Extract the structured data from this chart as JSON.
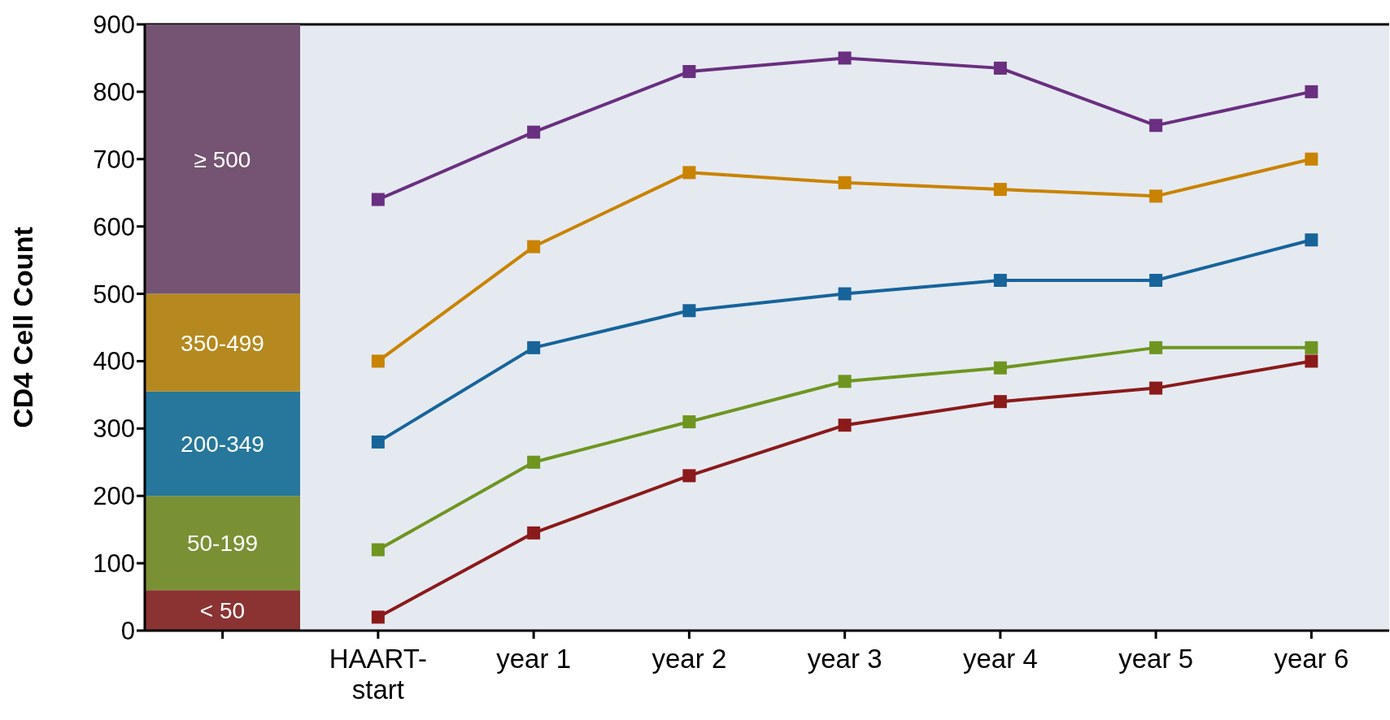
{
  "chart_data": {
    "type": "line",
    "ylabel": "CD4 Cell Count",
    "categories": [
      null,
      "HAART-start",
      "year 1",
      "year 2",
      "year 3",
      "year 4",
      "year 5",
      "year 6"
    ],
    "ylim": [
      0,
      900
    ],
    "yticks": [
      0,
      100,
      200,
      300,
      400,
      500,
      600,
      700,
      800,
      900
    ],
    "stacked": true,
    "marker": "square",
    "line_style": "solid",
    "legend": false,
    "series": [
      {
        "type": "bar",
        "name": "< 50",
        "color": "#8b3333",
        "values": [
          60,
          null,
          null,
          null,
          null,
          null,
          null,
          null
        ]
      },
      {
        "type": "bar",
        "name": "50-199",
        "color": "#7a9035",
        "values": [
          140,
          null,
          null,
          null,
          null,
          null,
          null,
          null
        ]
      },
      {
        "type": "bar",
        "name": "200-349",
        "color": "#26779b",
        "values": [
          155,
          null,
          null,
          null,
          null,
          null,
          null,
          null
        ]
      },
      {
        "type": "bar",
        "name": "350-499",
        "color": "#b5891f",
        "values": [
          145,
          null,
          null,
          null,
          null,
          null,
          null,
          null
        ]
      },
      {
        "type": "bar",
        "name": "≥ 500",
        "color": "#745472",
        "values": [
          400,
          null,
          null,
          null,
          null,
          null,
          null,
          null
        ]
      },
      {
        "color": "#6a2f80",
        "values": [
          null,
          640,
          740,
          830,
          850,
          835,
          750,
          800
        ]
      },
      {
        "color": "#c98300",
        "values": [
          null,
          400,
          570,
          680,
          665,
          655,
          645,
          700
        ]
      },
      {
        "color": "#17649b",
        "values": [
          null,
          280,
          420,
          475,
          500,
          520,
          520,
          580
        ]
      },
      {
        "color": "#6f9520",
        "values": [
          null,
          120,
          250,
          310,
          370,
          390,
          420,
          420
        ]
      },
      {
        "color": "#8b1a1a",
        "values": [
          null,
          20,
          145,
          230,
          305,
          340,
          360,
          400
        ]
      }
    ]
  }
}
